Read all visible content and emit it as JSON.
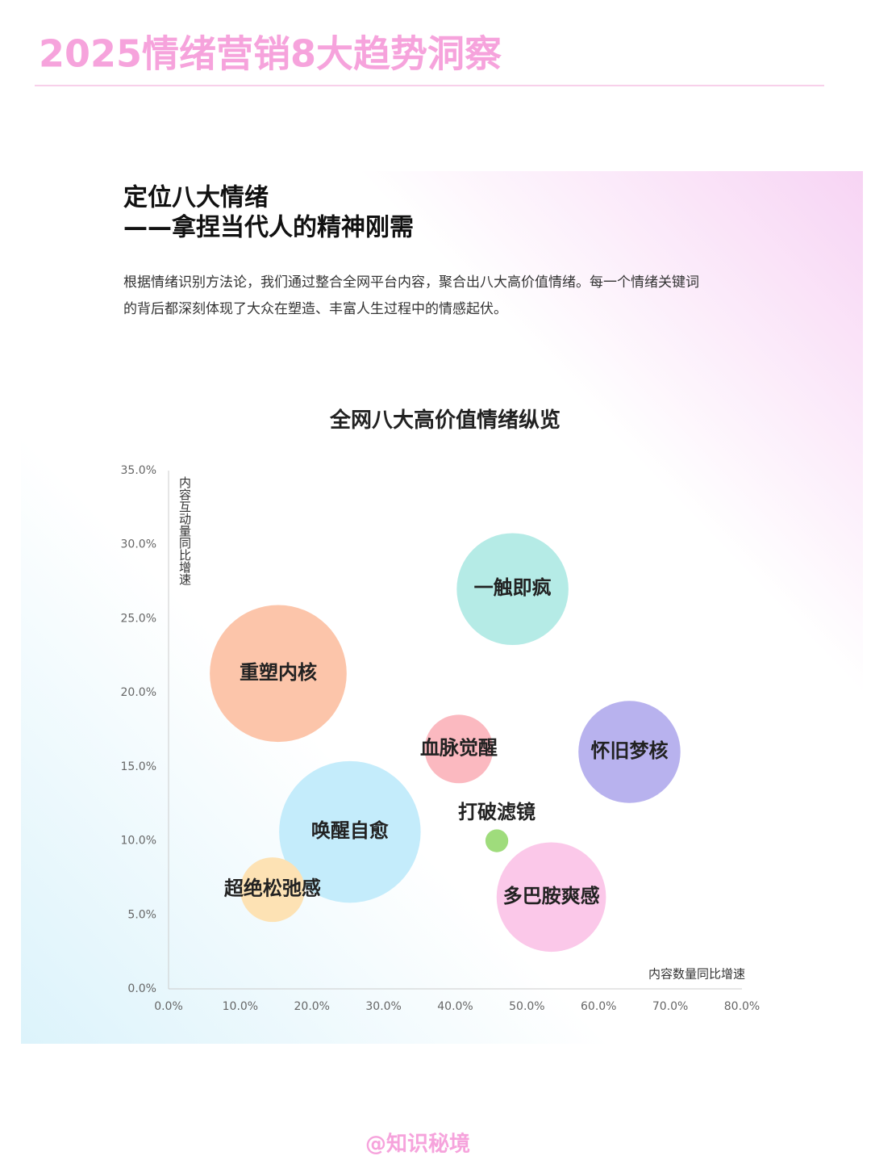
{
  "header": {
    "title": "2025情绪营销8大趋势洞察"
  },
  "card": {
    "title_lines": [
      "定位八大情绪",
      "——拿捏当代人的精神刚需"
    ],
    "description_lines": [
      "根据情绪识别方法论，我们通过整合全网平台内容，聚合出八大高价值情绪。每一个情绪关键词",
      "的背后都深刻体现了大众在塑造、丰富人生过程中的情感起伏。"
    ]
  },
  "chart_data": {
    "type": "bubble",
    "title": "全网八大高价值情绪纵览",
    "x_label": "内容数量同比增速",
    "y_label": "内容互动量同比增速",
    "categories": [
      "一触即疯",
      "重塑内核",
      "血脉觉醒",
      "怀旧梦核",
      "唤醒自愈",
      "打破滤镜",
      "超绝松弛感",
      "多巴胺爽感"
    ],
    "x": [
      48.0,
      15.3,
      40.5,
      64.3,
      25.3,
      45.8,
      14.5,
      53.4
    ],
    "values": [
      27.0,
      21.3,
      16.2,
      16.0,
      10.6,
      10.0,
      6.7,
      6.2
    ],
    "sizes": [
      48,
      72,
      18,
      40,
      77,
      2,
      16,
      46
    ],
    "colors": [
      "#b5ebe6",
      "#fcc5aa",
      "#fbb9c0",
      "#b8b2ee",
      "#c4ecfb",
      "#9fdc7c",
      "#fde2b4",
      "#fbc8e9"
    ],
    "xlim": [
      0,
      80
    ],
    "ylim": [
      0,
      35
    ],
    "xticks": [
      {
        "value": 0,
        "label": "0.0%"
      },
      {
        "value": 10,
        "label": "10.0%"
      },
      {
        "value": 20,
        "label": "20.0%"
      },
      {
        "value": 30,
        "label": "30.0%"
      },
      {
        "value": 40,
        "label": "40.0%"
      },
      {
        "value": 50,
        "label": "50.0%"
      },
      {
        "value": 60,
        "label": "60.0%"
      },
      {
        "value": 70,
        "label": "70.0%"
      },
      {
        "value": 80,
        "label": "80.0%"
      }
    ],
    "yticks": [
      {
        "value": 0,
        "label": "0.0%"
      },
      {
        "value": 5,
        "label": "5.0%"
      },
      {
        "value": 10,
        "label": "10.0%"
      },
      {
        "value": 15,
        "label": "15.0%"
      },
      {
        "value": 20,
        "label": "20.0%"
      },
      {
        "value": 25,
        "label": "25.0%"
      },
      {
        "value": 30,
        "label": "30.0%"
      },
      {
        "value": 35,
        "label": "35.0%"
      }
    ],
    "grid": false
  },
  "footer": {
    "watermark": "@知识秘境"
  }
}
